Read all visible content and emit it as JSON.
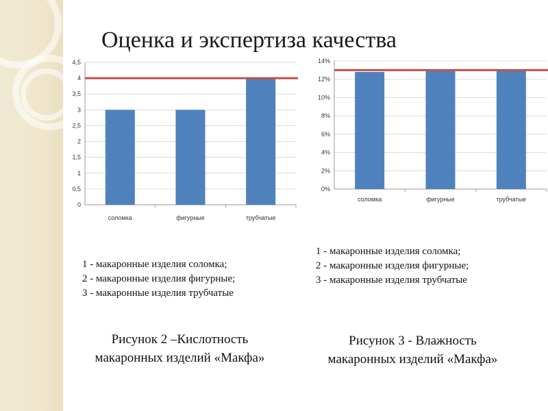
{
  "slide": {
    "title": "Оценка и экспертиза качества"
  },
  "chart_data": [
    {
      "type": "bar",
      "categories": [
        "соломка",
        "фигурные",
        "трубчатые"
      ],
      "values": [
        3,
        3,
        4
      ],
      "ylim": [
        0,
        4.5
      ],
      "yticks": [
        "0",
        "0,5",
        "1",
        "1,5",
        "2",
        "2,5",
        "3",
        "3,5",
        "4",
        "4,5"
      ],
      "reference_line": 4,
      "bar_color": "#4f81bd",
      "line_color": "#c0504d",
      "grid": true
    },
    {
      "type": "bar",
      "categories": [
        "соломка",
        "фигурные",
        "трубчатые"
      ],
      "values": [
        0.128,
        0.129,
        0.129
      ],
      "ylim": [
        0,
        0.14
      ],
      "yticks": [
        "0%",
        "2%",
        "4%",
        "6%",
        "8%",
        "10%",
        "12%",
        "14%"
      ],
      "reference_line": 0.13,
      "bar_color": "#4f81bd",
      "line_color": "#c0504d",
      "grid": true
    }
  ],
  "legend_left": {
    "items": [
      "1 - макаронные изделия соломка;",
      "2 - макаронные изделия фигурные;",
      "3 - макаронные изделия трубчатые"
    ]
  },
  "legend_right": {
    "items": [
      "1 - макаронные изделия соломка;",
      "2 - макаронные изделия фигурные;",
      "3 - макаронные изделия трубчатые"
    ]
  },
  "caption_left": {
    "line1": "Рисунок 2 –Кислотность",
    "line2": "макаронных изделий «Макфа»"
  },
  "caption_right": {
    "line1": "Рисунок 3 - Влажность",
    "line2": "макаронных изделий «Макфа»"
  }
}
